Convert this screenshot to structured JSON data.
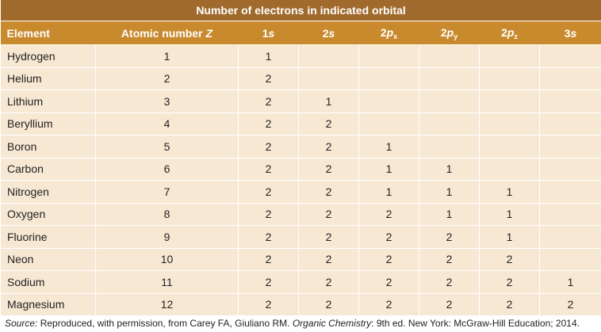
{
  "table": {
    "title": "Number of electrons in indicated orbital",
    "columns": [
      [
        "Element"
      ],
      [
        "Atomic number ",
        "Z"
      ],
      [
        "1",
        "s"
      ],
      [
        "2",
        "s"
      ],
      [
        "2",
        "p",
        "x"
      ],
      [
        "2",
        "p",
        "y"
      ],
      [
        "2",
        "p",
        "z"
      ],
      [
        "3",
        "s"
      ]
    ],
    "rows": [
      [
        "Hydrogen",
        1,
        1,
        null,
        null,
        null,
        null,
        null
      ],
      [
        "Helium",
        2,
        2,
        null,
        null,
        null,
        null,
        null
      ],
      [
        "Lithium",
        3,
        2,
        1,
        null,
        null,
        null,
        null
      ],
      [
        "Beryllium",
        4,
        2,
        2,
        null,
        null,
        null,
        null
      ],
      [
        "Boron",
        5,
        2,
        2,
        1,
        null,
        null,
        null
      ],
      [
        "Carbon",
        6,
        2,
        2,
        1,
        1,
        null,
        null
      ],
      [
        "Nitrogen",
        7,
        2,
        2,
        1,
        1,
        1,
        null
      ],
      [
        "Oxygen",
        8,
        2,
        2,
        2,
        1,
        1,
        null
      ],
      [
        "Fluorine",
        9,
        2,
        2,
        2,
        2,
        1,
        null
      ],
      [
        "Neon",
        10,
        2,
        2,
        2,
        2,
        2,
        null
      ],
      [
        "Sodium",
        11,
        2,
        2,
        2,
        2,
        2,
        1
      ],
      [
        "Magnesium",
        12,
        2,
        2,
        2,
        2,
        2,
        2
      ]
    ]
  },
  "source": [
    "Source:",
    " Reproduced, with permission, from Carey FA, Giuliano RM. ",
    "Organic Chemistry",
    ": 9th ed. New York: McGraw-Hill Education; 2014."
  ]
}
